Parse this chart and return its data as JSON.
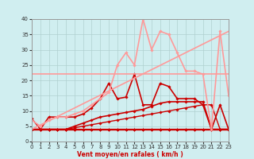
{
  "xlabel": "Vent moyen/en rafales ( km/h )",
  "background_color": "#d0eef0",
  "grid_color": "#b0d0d0",
  "xlim": [
    0,
    23
  ],
  "ylim": [
    0,
    40
  ],
  "xticks": [
    0,
    1,
    2,
    3,
    4,
    5,
    6,
    7,
    8,
    9,
    10,
    11,
    12,
    13,
    14,
    15,
    16,
    17,
    18,
    19,
    20,
    21,
    22,
    23
  ],
  "yticks": [
    0,
    5,
    10,
    15,
    20,
    25,
    30,
    35,
    40
  ],
  "series": [
    {
      "x": [
        0,
        1,
        2,
        3,
        4,
        5,
        6,
        7,
        8,
        9,
        10,
        11,
        12,
        13,
        14,
        15,
        16,
        17,
        18,
        19,
        20,
        21,
        22,
        23
      ],
      "y": [
        4,
        4,
        4,
        4,
        4,
        4,
        4,
        4,
        4,
        4,
        4,
        4,
        4,
        4,
        4,
        4,
        4,
        4,
        4,
        4,
        4,
        4,
        4,
        4
      ],
      "color": "#cc0000",
      "lw": 1.0,
      "marker": "D",
      "ms": 1.8
    },
    {
      "x": [
        0,
        1,
        2,
        3,
        4,
        5,
        6,
        7,
        8,
        9,
        10,
        11,
        12,
        13,
        14,
        15,
        16,
        17,
        18,
        19,
        20,
        21,
        22,
        23
      ],
      "y": [
        4,
        4,
        4,
        4,
        4,
        4.5,
        5,
        5.5,
        6,
        6.5,
        7,
        7.5,
        8,
        8.5,
        9,
        9.5,
        10,
        10.5,
        11,
        11.5,
        12,
        12,
        4,
        4
      ],
      "color": "#cc0000",
      "lw": 1.0,
      "marker": "D",
      "ms": 1.8
    },
    {
      "x": [
        0,
        1,
        2,
        3,
        4,
        5,
        6,
        7,
        8,
        9,
        10,
        11,
        12,
        13,
        14,
        15,
        16,
        17,
        18,
        19,
        20,
        21,
        22,
        23
      ],
      "y": [
        4,
        4,
        4,
        4,
        4,
        5,
        6,
        7,
        8,
        8.5,
        9,
        9.5,
        10,
        10.5,
        11.5,
        12.5,
        13,
        13,
        13,
        13,
        13,
        4,
        4,
        4
      ],
      "color": "#cc0000",
      "lw": 1.2,
      "marker": "D",
      "ms": 1.8
    },
    {
      "x": [
        0,
        1,
        2,
        3,
        4,
        5,
        6,
        7,
        8,
        9,
        10,
        11,
        12,
        13,
        14,
        15,
        16,
        17,
        18,
        19,
        20,
        21,
        22,
        23
      ],
      "y": [
        7.5,
        4,
        4,
        4,
        4,
        4,
        4,
        4,
        4,
        4,
        4,
        4,
        4,
        4,
        4,
        4,
        4,
        4,
        4,
        4,
        4,
        4,
        4,
        4
      ],
      "color": "#cc0000",
      "lw": 1.0,
      "marker": "D",
      "ms": 1.8
    },
    {
      "x": [
        1,
        2,
        3,
        4,
        5,
        6,
        7,
        8,
        9,
        10,
        11,
        12,
        13,
        14,
        15,
        16,
        17,
        18,
        19,
        20,
        21,
        22,
        23
      ],
      "y": [
        4,
        8,
        8,
        8,
        8,
        9,
        11,
        14,
        19,
        14,
        14.5,
        22,
        12,
        12,
        19,
        18,
        14,
        14,
        14,
        12,
        4,
        12,
        4
      ],
      "color": "#cc0000",
      "lw": 1.2,
      "marker": "D",
      "ms": 1.8
    },
    {
      "x": [
        0,
        1,
        2,
        3,
        4,
        5,
        6,
        7,
        8,
        9,
        10,
        11,
        12,
        13,
        14,
        15,
        16,
        17,
        18,
        19,
        20,
        21,
        22,
        23
      ],
      "y": [
        7,
        5,
        7,
        8,
        8,
        9,
        10,
        12,
        14,
        16,
        25,
        29,
        25,
        40,
        30,
        36,
        35,
        29,
        23,
        23,
        22,
        4,
        36,
        15
      ],
      "color": "#ff9999",
      "lw": 1.2,
      "marker": "D",
      "ms": 1.8
    },
    {
      "x": [
        0,
        1,
        2,
        3,
        4,
        5,
        6,
        7,
        8,
        9,
        10,
        11,
        12,
        13,
        14,
        15,
        16,
        17,
        18,
        19,
        20,
        21,
        22,
        23
      ],
      "y": [
        22,
        22,
        22,
        22,
        22,
        22,
        22,
        22,
        22,
        22,
        22,
        22,
        22,
        22,
        22,
        22,
        22,
        22,
        22,
        22,
        22,
        22,
        22,
        22
      ],
      "color": "#ff9999",
      "lw": 1.2,
      "marker": null,
      "ms": 0
    },
    {
      "x": [
        0,
        23
      ],
      "y": [
        4,
        36
      ],
      "color": "#ff9999",
      "lw": 1.2,
      "marker": null,
      "ms": 0
    }
  ]
}
